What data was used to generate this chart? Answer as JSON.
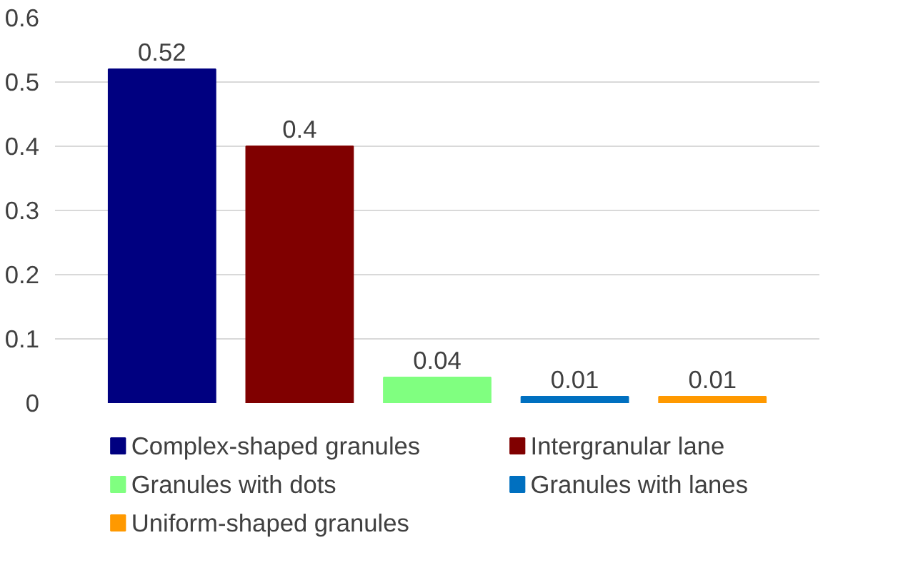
{
  "chart_data": {
    "type": "bar",
    "categories": [
      null
    ],
    "series": [
      {
        "name": "Complex-shaped granules",
        "color": "#000080",
        "values": [
          0.52
        ]
      },
      {
        "name": "Intergranular lane",
        "color": "#800000",
        "values": [
          0.4
        ]
      },
      {
        "name": "Granules with dots",
        "color": "#80ff80",
        "values": [
          0.04
        ]
      },
      {
        "name": "Granules with lanes",
        "color": "#0070c0",
        "values": [
          0.01
        ]
      },
      {
        "name": "Uniform-shaped granules",
        "color": "#ff9900",
        "values": [
          0.01
        ]
      }
    ],
    "ylim": [
      0,
      0.6
    ],
    "yticks": [
      0,
      0.1,
      0.2,
      0.3,
      0.4,
      0.5,
      0.6
    ],
    "grid": "y",
    "legend": "bottom",
    "data_labels": true
  }
}
